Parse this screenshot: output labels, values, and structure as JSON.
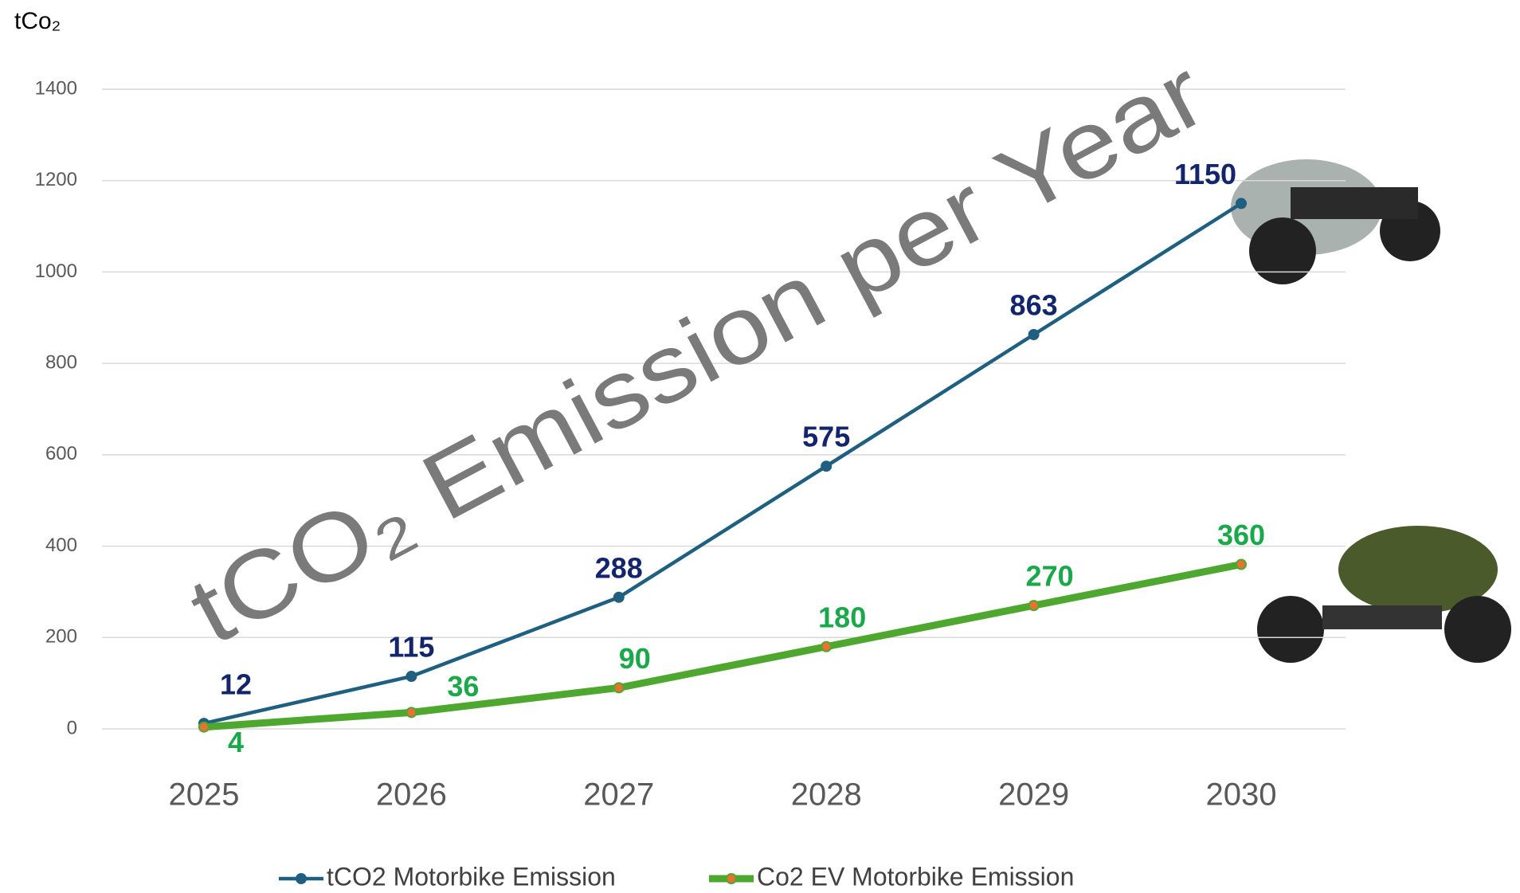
{
  "chart_data": {
    "type": "line",
    "y_label": "tCo₂",
    "watermark": "tCO₂ Emission per Year",
    "categories": [
      "2025",
      "2026",
      "2027",
      "2028",
      "2029",
      "2030"
    ],
    "series": [
      {
        "name": "tCO2 Motorbike Emission",
        "color": "#1f5f80",
        "label_color": "#13266b",
        "marker_color": "#1f5f80",
        "values": [
          12,
          115,
          288,
          575,
          863,
          1150
        ]
      },
      {
        "name": "Co2 EV Motorbike Emission",
        "color": "#4ea72e",
        "label_color": "#1aa84a",
        "marker_color": "#e97132",
        "values": [
          4,
          36,
          90,
          180,
          270,
          360
        ]
      }
    ],
    "ylim": [
      0,
      1400
    ],
    "yticks": [
      0,
      200,
      400,
      600,
      800,
      1000,
      1200,
      1400
    ],
    "grid": true
  }
}
